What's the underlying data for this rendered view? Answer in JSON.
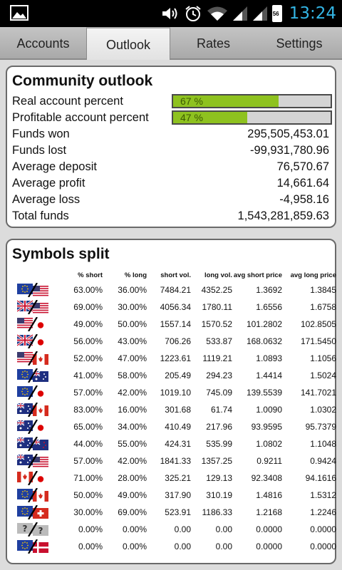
{
  "status": {
    "time": "13:24",
    "battery": "56"
  },
  "tabs": [
    {
      "label": "Accounts"
    },
    {
      "label": "Outlook"
    },
    {
      "label": "Rates"
    },
    {
      "label": "Settings"
    }
  ],
  "outlook": {
    "title": "Community outlook",
    "real_label": "Real account percent",
    "real_text": "67 %",
    "real_value": 67,
    "profitable_label": "Profitable account percent",
    "profitable_text": "47 %",
    "profitable_value": 47,
    "stats": [
      {
        "label": "Funds won",
        "value": "295,505,453.01"
      },
      {
        "label": "Funds lost",
        "value": "-99,931,780.96"
      },
      {
        "label": "Average deposit",
        "value": "76,570.67"
      },
      {
        "label": "Average profit",
        "value": "14,661.64"
      },
      {
        "label": "Average loss",
        "value": "-4,958.16"
      },
      {
        "label": "Total funds",
        "value": "1,543,281,859.63"
      }
    ]
  },
  "symbols": {
    "title": "Symbols split",
    "headers": [
      "% short",
      "% long",
      "short vol.",
      "long vol.",
      "avg short price",
      "avg long price"
    ],
    "rows": [
      {
        "flags": [
          "eu",
          "us"
        ],
        "cells": [
          "63.00%",
          "36.00%",
          "7484.21",
          "4352.25",
          "1.3692",
          "1.3845"
        ]
      },
      {
        "flags": [
          "gb",
          "us"
        ],
        "cells": [
          "69.00%",
          "30.00%",
          "4056.34",
          "1780.11",
          "1.6556",
          "1.6758"
        ]
      },
      {
        "flags": [
          "us",
          "jp"
        ],
        "cells": [
          "49.00%",
          "50.00%",
          "1557.14",
          "1570.52",
          "101.2802",
          "102.8505"
        ]
      },
      {
        "flags": [
          "gb",
          "jp"
        ],
        "cells": [
          "56.00%",
          "43.00%",
          "706.26",
          "533.87",
          "168.0632",
          "171.5450"
        ]
      },
      {
        "flags": [
          "us",
          "ca"
        ],
        "cells": [
          "52.00%",
          "47.00%",
          "1223.61",
          "1119.21",
          "1.0893",
          "1.1056"
        ]
      },
      {
        "flags": [
          "eu",
          "au"
        ],
        "cells": [
          "41.00%",
          "58.00%",
          "205.49",
          "294.23",
          "1.4414",
          "1.5024"
        ]
      },
      {
        "flags": [
          "eu",
          "jp"
        ],
        "cells": [
          "57.00%",
          "42.00%",
          "1019.10",
          "745.09",
          "139.5539",
          "141.7021"
        ]
      },
      {
        "flags": [
          "au",
          "ca"
        ],
        "cells": [
          "83.00%",
          "16.00%",
          "301.68",
          "61.74",
          "1.0090",
          "1.0302"
        ]
      },
      {
        "flags": [
          "au",
          "jp"
        ],
        "cells": [
          "65.00%",
          "34.00%",
          "410.49",
          "217.96",
          "93.9595",
          "95.7379"
        ]
      },
      {
        "flags": [
          "au",
          "nz"
        ],
        "cells": [
          "44.00%",
          "55.00%",
          "424.31",
          "535.99",
          "1.0802",
          "1.1048"
        ]
      },
      {
        "flags": [
          "au",
          "us"
        ],
        "cells": [
          "57.00%",
          "42.00%",
          "1841.33",
          "1357.25",
          "0.9211",
          "0.9424"
        ]
      },
      {
        "flags": [
          "ca",
          "jp"
        ],
        "cells": [
          "71.00%",
          "28.00%",
          "325.21",
          "129.13",
          "92.3408",
          "94.1616"
        ]
      },
      {
        "flags": [
          "eu",
          "ca"
        ],
        "cells": [
          "50.00%",
          "49.00%",
          "317.90",
          "310.19",
          "1.4816",
          "1.5312"
        ]
      },
      {
        "flags": [
          "eu",
          "ch"
        ],
        "cells": [
          "30.00%",
          "69.00%",
          "523.91",
          "1186.33",
          "1.2168",
          "1.2246"
        ]
      },
      {
        "flags": [
          "unknown",
          "unknown"
        ],
        "cells": [
          "0.00%",
          "0.00%",
          "0.00",
          "0.00",
          "0.0000",
          "0.0000"
        ]
      },
      {
        "flags": [
          "eu",
          "dk"
        ],
        "cells": [
          "0.00%",
          "0.00%",
          "0.00",
          "0.00",
          "0.0000",
          "0.0000"
        ]
      }
    ]
  }
}
